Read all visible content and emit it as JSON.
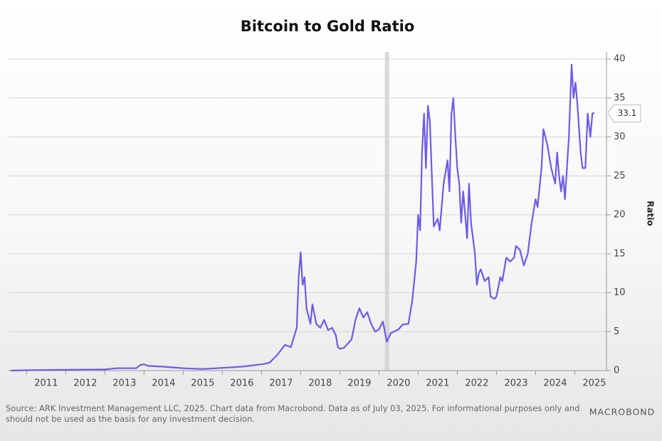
{
  "chart_data": {
    "type": "line",
    "title": "Bitcoin to Gold Ratio",
    "y_axis_label": "Ratio",
    "source": "Source: ARK Investment Management LLC, 2025. Chart data from Macrobond. Data as of July 03, 2025. For informational purposes only and",
    "source_line2": "should not be used as the basis for any investment decision.",
    "brand": "MACROBOND",
    "grid": true,
    "y_axis_side": "right",
    "shaded_band": [
      2020.15,
      2020.25
    ],
    "xlim": [
      2010.54,
      2025.81
    ],
    "ylim": [
      0,
      40
    ],
    "yticks": [
      0,
      5,
      10,
      15,
      20,
      25,
      30,
      35,
      40
    ],
    "xticks": [
      {
        "value": 2011.5,
        "label": "2011"
      },
      {
        "value": 2012.5,
        "label": "2012"
      },
      {
        "value": 2013.5,
        "label": "2013"
      },
      {
        "value": 2014.5,
        "label": "2014"
      },
      {
        "value": 2015.5,
        "label": "2015"
      },
      {
        "value": 2016.5,
        "label": "2016"
      },
      {
        "value": 2017.5,
        "label": "2017"
      },
      {
        "value": 2018.5,
        "label": "2018"
      },
      {
        "value": 2019.5,
        "label": "2019"
      },
      {
        "value": 2020.5,
        "label": "2020"
      },
      {
        "value": 2021.5,
        "label": "2021"
      },
      {
        "value": 2022.5,
        "label": "2022"
      },
      {
        "value": 2023.5,
        "label": "2023"
      },
      {
        "value": 2024.5,
        "label": "2024"
      },
      {
        "value": 2025.5,
        "label": "2025"
      }
    ],
    "x": [
      2010.6,
      2011.0,
      2012.0,
      2013.0,
      2013.3,
      2013.8,
      2013.9,
      2014.0,
      2014.1,
      2014.5,
      2015.0,
      2015.5,
      2016.0,
      2016.5,
      2017.0,
      2017.2,
      2017.4,
      2017.6,
      2017.75,
      2017.9,
      2017.95,
      2018.0,
      2018.05,
      2018.1,
      2018.15,
      2018.25,
      2018.3,
      2018.4,
      2018.5,
      2018.6,
      2018.7,
      2018.8,
      2018.9,
      2018.95,
      2019.0,
      2019.1,
      2019.3,
      2019.4,
      2019.5,
      2019.6,
      2019.7,
      2019.8,
      2019.9,
      2020.0,
      2020.1,
      2020.2,
      2020.3,
      2020.5,
      2020.6,
      2020.75,
      2020.85,
      2020.95,
      2021.0,
      2021.05,
      2021.1,
      2021.15,
      2021.2,
      2021.25,
      2021.3,
      2021.35,
      2021.4,
      2021.5,
      2021.55,
      2021.65,
      2021.75,
      2021.8,
      2021.85,
      2021.9,
      2021.95,
      2022.0,
      2022.05,
      2022.1,
      2022.15,
      2022.25,
      2022.3,
      2022.35,
      2022.45,
      2022.5,
      2022.55,
      2022.6,
      2022.7,
      2022.8,
      2022.85,
      2022.95,
      2023.0,
      2023.1,
      2023.15,
      2023.25,
      2023.35,
      2023.45,
      2023.5,
      2023.6,
      2023.7,
      2023.8,
      2023.9,
      2024.0,
      2024.05,
      2024.15,
      2024.2,
      2024.3,
      2024.4,
      2024.5,
      2024.55,
      2024.6,
      2024.65,
      2024.7,
      2024.75,
      2024.85,
      2024.92,
      2024.97,
      2025.02,
      2025.07,
      2025.15,
      2025.2,
      2025.27,
      2025.33,
      2025.4,
      2025.45,
      2025.5
    ],
    "series": [
      {
        "name": "Bitcoin to Gold Ratio",
        "color": "#6c5ce7",
        "values": [
          0.0,
          0.05,
          0.1,
          0.15,
          0.3,
          0.3,
          0.7,
          0.8,
          0.6,
          0.5,
          0.3,
          0.2,
          0.35,
          0.5,
          0.8,
          1.0,
          2.0,
          3.3,
          3.0,
          5.5,
          12,
          15.2,
          11,
          12,
          8,
          6,
          8.5,
          6,
          5.5,
          6.5,
          5.2,
          5.5,
          4.5,
          3.0,
          2.8,
          2.9,
          4.0,
          6.5,
          8.0,
          6.8,
          7.5,
          6.0,
          5.0,
          5.3,
          6.3,
          3.7,
          4.8,
          5.3,
          5.9,
          6.0,
          9,
          14,
          20,
          18,
          28,
          33,
          26,
          34,
          32,
          25,
          18.5,
          19.5,
          18,
          24,
          27,
          23,
          33,
          35,
          30,
          26,
          24,
          19,
          23,
          17,
          24,
          19,
          15,
          11,
          12.5,
          13,
          11.5,
          12,
          9.5,
          9.2,
          9.5,
          12,
          11.5,
          14.5,
          14,
          14.5,
          16,
          15.5,
          13.5,
          15,
          19,
          22,
          21,
          26,
          31,
          29,
          26,
          24,
          28,
          25,
          23,
          25,
          22,
          30,
          39.3,
          35,
          37,
          34,
          28,
          26,
          26,
          33,
          30,
          33,
          33.1
        ]
      }
    ]
  }
}
